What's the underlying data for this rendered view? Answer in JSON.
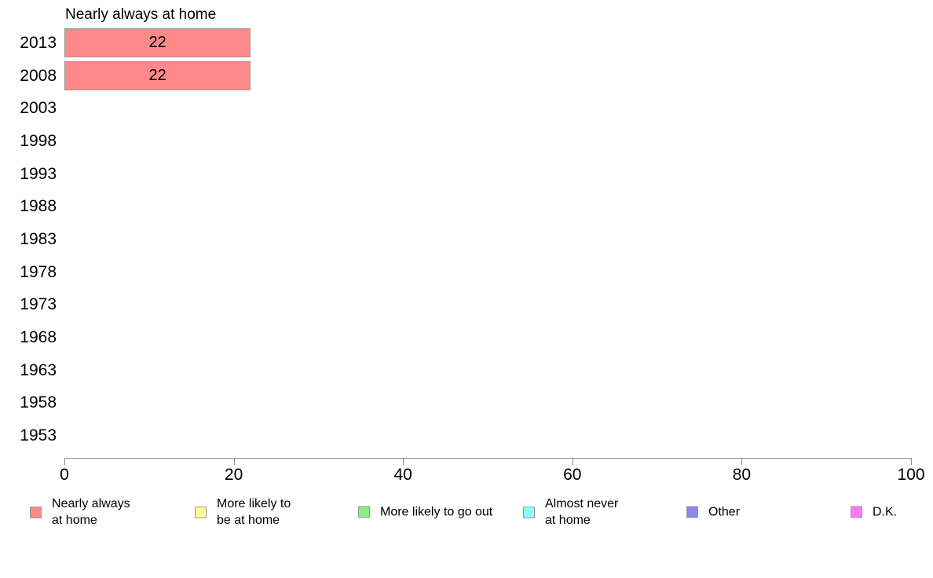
{
  "title": "Nearly always at home",
  "chart_data": {
    "type": "bar",
    "orientation": "horizontal",
    "title": "Nearly always at home",
    "categories": [
      "2013",
      "2008",
      "2003",
      "1998",
      "1993",
      "1988",
      "1983",
      "1978",
      "1973",
      "1968",
      "1963",
      "1958",
      "1953"
    ],
    "values": [
      22,
      22,
      null,
      null,
      null,
      null,
      null,
      null,
      null,
      null,
      null,
      null,
      null
    ],
    "bar_labels": [
      "22",
      "22",
      "",
      "",
      "",
      "",
      "",
      "",
      "",
      "",
      "",
      "",
      ""
    ],
    "xlabel": "",
    "ylabel": "",
    "xlim": [
      0,
      100
    ],
    "x_ticks": [
      "0",
      "20",
      "40",
      "60",
      "80",
      "100"
    ],
    "x_tick_values": [
      0,
      20,
      40,
      60,
      80,
      100
    ],
    "grid": false,
    "legend_position": "bottom",
    "bar_color": "#FF8888",
    "bar_border_color": "#999999"
  },
  "legend": {
    "items": [
      {
        "label": "Nearly always\nat home",
        "color": "#FF8888",
        "name": "nearly-always-at-home"
      },
      {
        "label": "More likely to\nbe at home",
        "color": "#FFFF99",
        "name": "more-likely-to-be-at-home"
      },
      {
        "label": "More likely to go out",
        "color": "#88EE88",
        "name": "more-likely-to-go-out"
      },
      {
        "label": "Almost never\nat home",
        "color": "#88FFFF",
        "name": "almost-never-at-home"
      },
      {
        "label": "Other",
        "color": "#8888EE",
        "name": "other"
      },
      {
        "label": "D.K.",
        "color": "#FF77FF",
        "name": "dk"
      }
    ]
  },
  "colors": {
    "axis": "#8A8A8A",
    "text": "#000000",
    "background": "#FFFFFF"
  }
}
